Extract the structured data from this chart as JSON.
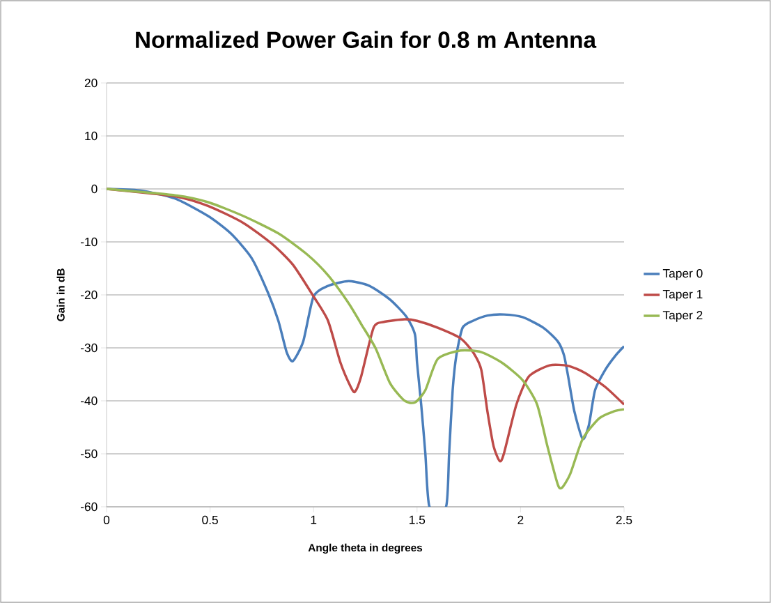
{
  "chart_data": {
    "type": "line",
    "title": "Normalized Power Gain for 0.8 m Antenna",
    "xlabel": "Angle theta in degrees",
    "ylabel": "Gain in dB",
    "xlim": [
      0,
      2.5
    ],
    "xticks": [
      0,
      0.5,
      1,
      1.5,
      2,
      2.5
    ],
    "ylim": [
      -60,
      20
    ],
    "yticks": [
      -60,
      -50,
      -40,
      -30,
      -20,
      -10,
      0,
      10,
      20
    ],
    "grid": "y",
    "legend": "right",
    "marker": "none",
    "line_style": "solid",
    "series": [
      {
        "name": "Taper 0",
        "color": "#4a7ebb",
        "x": [
          0,
          0.16,
          0.33,
          0.49,
          0.6,
          0.7,
          0.78,
          0.83,
          0.87,
          0.9,
          0.95,
          1.0,
          1.07,
          1.17,
          1.27,
          1.37,
          1.45,
          1.49,
          1.5,
          1.52,
          1.54,
          1.56,
          1.64,
          1.655,
          1.672,
          1.69,
          1.72,
          1.77,
          1.84,
          1.92,
          2.01,
          2.11,
          2.18,
          2.21,
          2.23,
          2.26,
          2.3,
          2.33,
          2.36,
          2.41,
          2.46,
          2.5
        ],
        "values": [
          0,
          -0.3,
          -1.8,
          -5.1,
          -8.4,
          -13,
          -19.6,
          -24.9,
          -30.8,
          -32.5,
          -28.8,
          -20.3,
          -18.3,
          -17.4,
          -18.3,
          -20.9,
          -24.2,
          -27.5,
          -32.8,
          -40.7,
          -49.9,
          -60,
          -60,
          -49.9,
          -38,
          -31.4,
          -26.2,
          -24.9,
          -23.9,
          -23.7,
          -24.2,
          -26.2,
          -28.8,
          -31.4,
          -35.4,
          -42,
          -47.2,
          -44.6,
          -38,
          -34.1,
          -31.4,
          -29.7
        ]
      },
      {
        "name": "Taper 1",
        "color": "#be4b48",
        "x": [
          0,
          0.33,
          0.49,
          0.66,
          0.8,
          0.9,
          1.0,
          1.07,
          1.13,
          1.18,
          1.2,
          1.23,
          1.29,
          1.34,
          1.44,
          1.5,
          1.6,
          1.71,
          1.77,
          1.81,
          1.84,
          1.87,
          1.9,
          1.92,
          1.98,
          2.04,
          2.14,
          2.23,
          2.31,
          2.41,
          2.5
        ],
        "values": [
          0,
          -1.4,
          -3.2,
          -6.4,
          -10.4,
          -14.3,
          -20.3,
          -24.9,
          -32.8,
          -37.4,
          -38.3,
          -35.4,
          -26.2,
          -25.1,
          -24.6,
          -24.9,
          -26.2,
          -28.2,
          -30.8,
          -34.1,
          -42,
          -48.6,
          -51.4,
          -49.9,
          -40.7,
          -35.4,
          -33.3,
          -33.4,
          -34.7,
          -37.4,
          -40.7
        ]
      },
      {
        "name": "Taper 2",
        "color": "#98b954",
        "x": [
          0,
          0.33,
          0.49,
          0.66,
          0.83,
          0.97,
          1.07,
          1.17,
          1.23,
          1.3,
          1.37,
          1.44,
          1.49,
          1.54,
          1.6,
          1.71,
          1.81,
          1.91,
          2.01,
          2.08,
          2.13,
          2.18,
          2.2,
          2.24,
          2.3,
          2.38,
          2.45,
          2.5
        ],
        "values": [
          0,
          -1.2,
          -2.5,
          -5.1,
          -8.4,
          -12.4,
          -16.3,
          -21.6,
          -25.5,
          -30.1,
          -36.7,
          -40,
          -40.3,
          -38,
          -32.1,
          -30.5,
          -30.8,
          -32.8,
          -36.1,
          -40.7,
          -48.6,
          -55.8,
          -56.4,
          -53.8,
          -47.2,
          -43.3,
          -42,
          -41.6
        ]
      }
    ]
  }
}
